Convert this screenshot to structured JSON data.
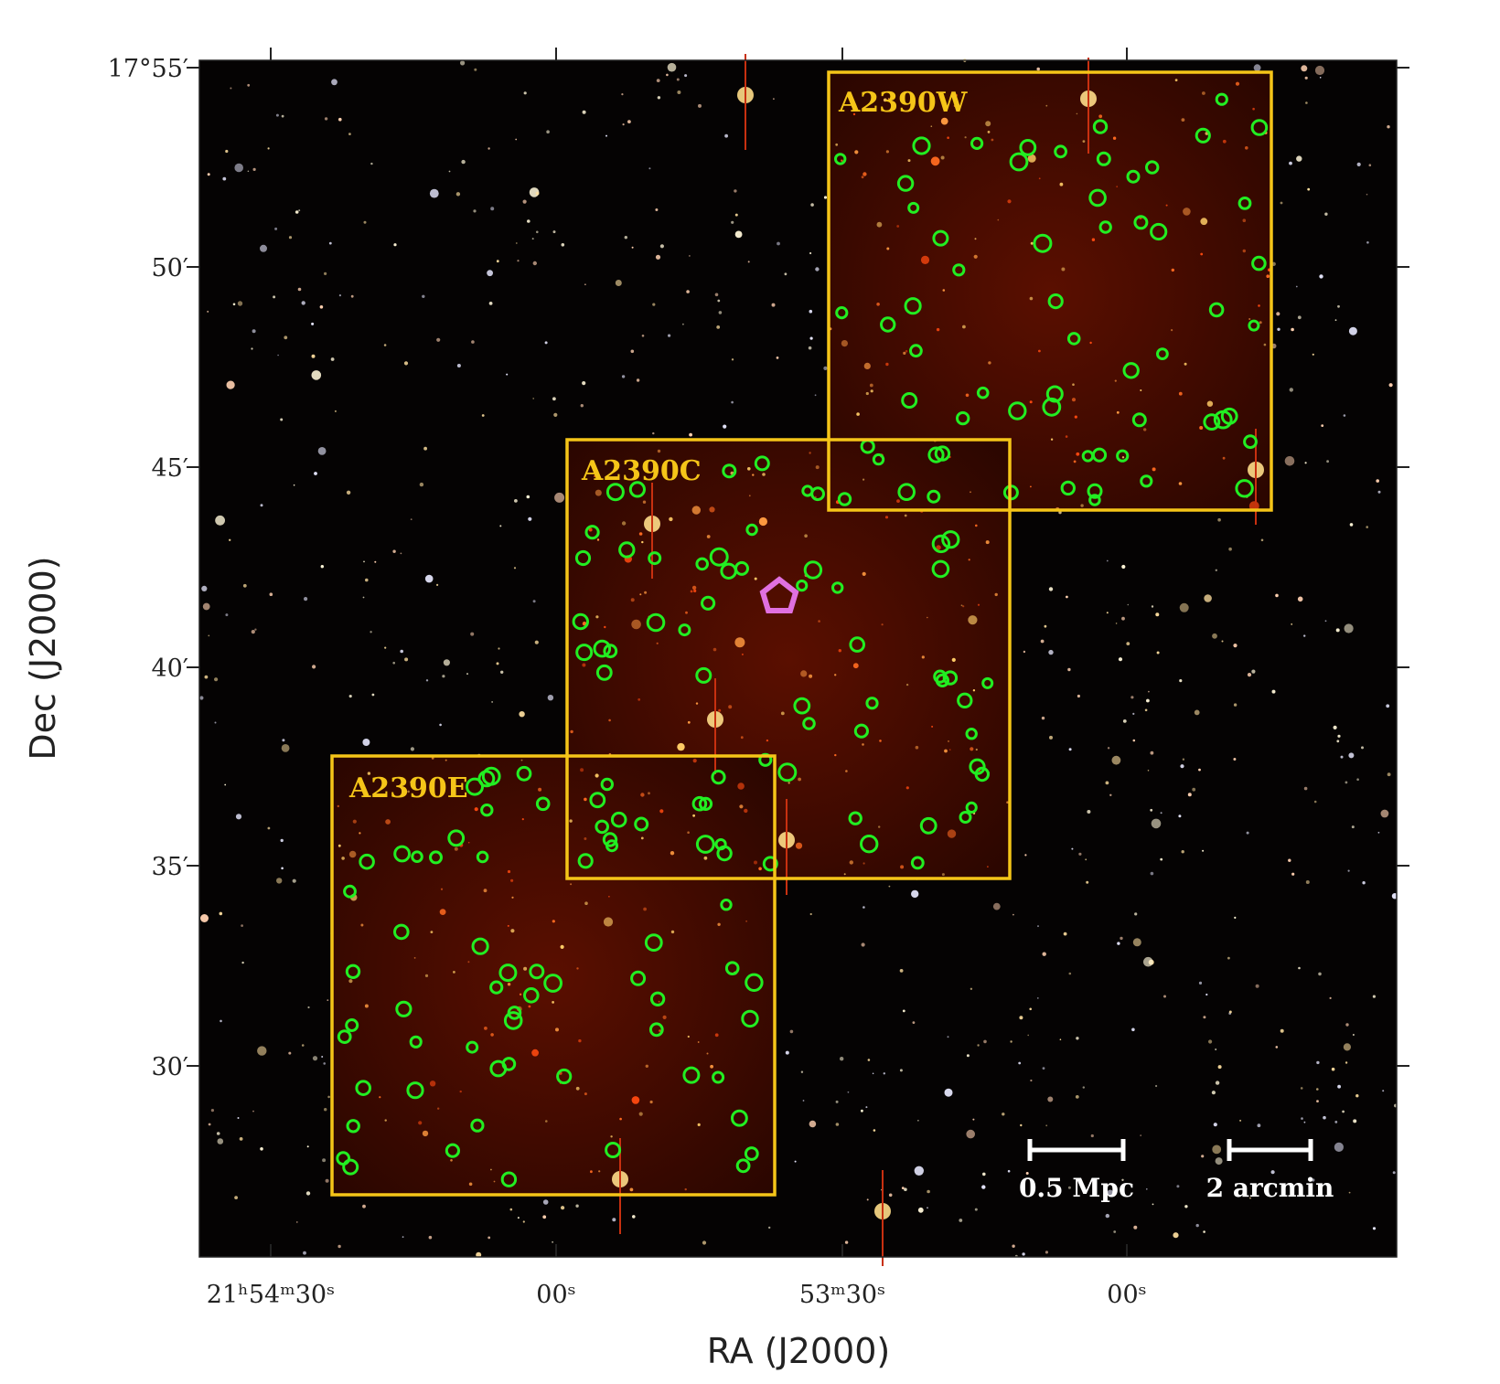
{
  "axes": {
    "x_label": "RA (J2000)",
    "y_label": "Dec (J2000)",
    "x_ticks": [
      "21ʰ54ᵐ30ˢ",
      "00ˢ",
      "53ᵐ30ˢ",
      "00ˢ"
    ],
    "y_ticks": [
      "17°55′",
      "50′",
      "45′",
      "40′",
      "35′",
      "30′"
    ]
  },
  "fields": [
    {
      "label": "A2390W"
    },
    {
      "label": "A2390C"
    },
    {
      "label": "A2390E"
    }
  ],
  "scale_bars": [
    {
      "label": "0.5 Mpc"
    },
    {
      "label": "2 arcmin"
    }
  ]
}
